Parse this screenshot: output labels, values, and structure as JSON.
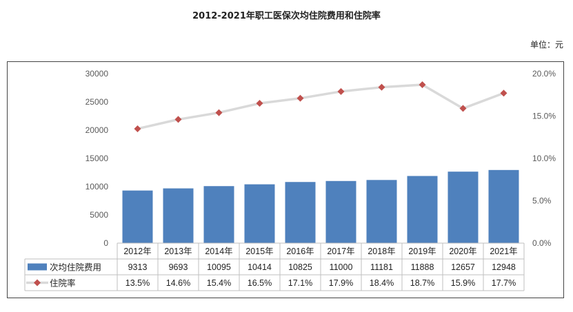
{
  "header": {
    "title": "2012-2021年职工医保次均住院费用和住院率",
    "unit": "单位：元"
  },
  "chart_data": {
    "type": "bar+line",
    "categories": [
      "2012年",
      "2013年",
      "2014年",
      "2015年",
      "2016年",
      "2017年",
      "2018年",
      "2019年",
      "2020年",
      "2021年"
    ],
    "series": [
      {
        "name": "次均住院费用",
        "type": "bar",
        "axis": "left",
        "color": "#4f81bd",
        "values": [
          9313,
          9693,
          10095,
          10414,
          10825,
          11000,
          11181,
          11888,
          12657,
          12948
        ]
      },
      {
        "name": "住院率",
        "type": "line",
        "axis": "right",
        "line_color": "#d9d9d9",
        "marker_color": "#c0504d",
        "marker": "diamond",
        "values": [
          13.5,
          14.6,
          15.4,
          16.5,
          17.1,
          17.9,
          18.4,
          18.7,
          15.9,
          17.7
        ],
        "labels": [
          "13.5%",
          "14.6%",
          "15.4%",
          "16.5%",
          "17.1%",
          "17.9%",
          "18.4%",
          "18.7%",
          "15.9%",
          "17.7%"
        ]
      }
    ],
    "y_left": {
      "ylim": [
        0,
        30000
      ],
      "ticks": [
        "30000",
        "25000",
        "20000",
        "15000",
        "10000",
        "5000",
        "0"
      ]
    },
    "y_right": {
      "ylim": [
        0,
        20
      ],
      "ticks": [
        "20.0%",
        "15.0%",
        "10.0%",
        "5.0%",
        "0.0%"
      ]
    },
    "grid": false,
    "legend": "data-table"
  }
}
